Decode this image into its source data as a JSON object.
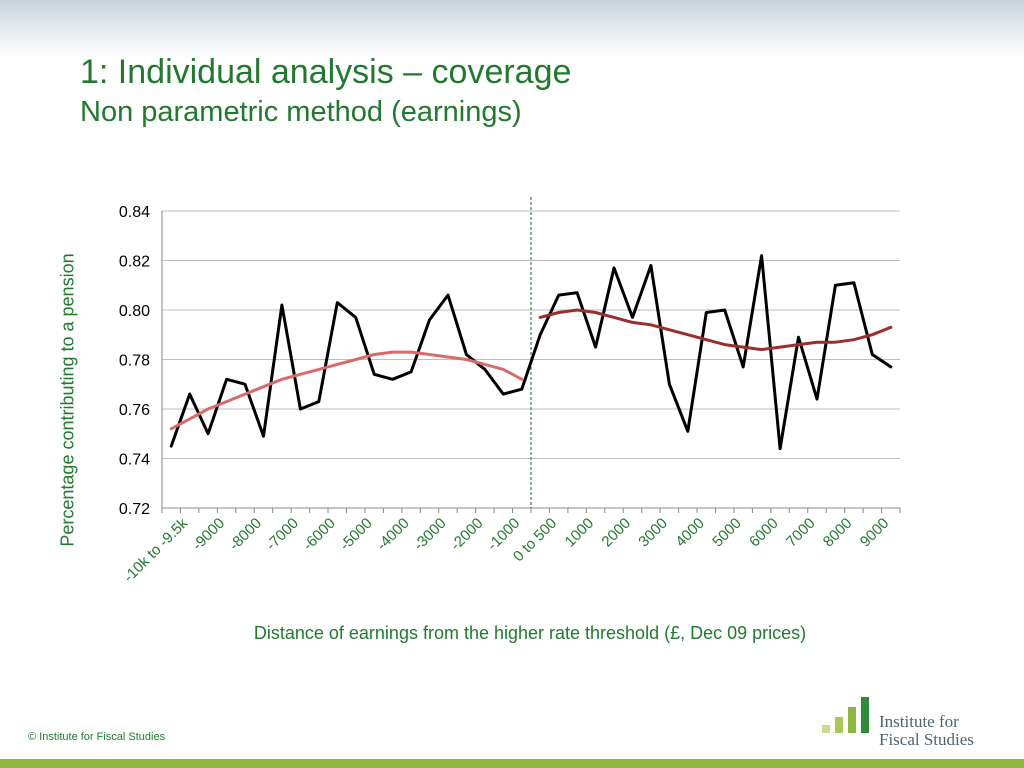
{
  "slide": {
    "title": "1: Individual analysis – coverage",
    "subtitle": "Non parametric method (earnings)",
    "footer": "© Institute for Fiscal Studies",
    "logo_line1": "Institute for",
    "logo_line2": "Fiscal Studies",
    "brand_color": "#1f7a2e",
    "accent_color": "#8cb83f"
  },
  "chart_data": {
    "type": "line",
    "title": "",
    "ylabel": "Percentage contributing to a pension",
    "xlabel": "Distance of earnings from the higher rate threshold (£, Dec 09 prices)",
    "ylim": [
      0.72,
      0.84
    ],
    "yticks": [
      "0.72",
      "0.74",
      "0.76",
      "0.78",
      "0.80",
      "0.82",
      "0.84"
    ],
    "xtick_labels": [
      "-10k to -9.5k",
      "-9000",
      "-8000",
      "-7000",
      "-6000",
      "-5000",
      "-4000",
      "-3000",
      "-2000",
      "-1000",
      "0 to 500",
      "1000",
      "2000",
      "3000",
      "4000",
      "5000",
      "6000",
      "7000",
      "8000",
      "9000"
    ],
    "grid": true,
    "threshold_marker": "dashed vertical line between -500 and 0 to 500",
    "series": [
      {
        "role": "actual",
        "color": "#000000",
        "values": [
          0.745,
          0.766,
          0.75,
          0.772,
          0.77,
          0.749,
          0.802,
          0.76,
          0.763,
          0.803,
          0.797,
          0.774,
          0.772,
          0.775,
          0.796,
          0.806,
          0.782,
          0.776,
          0.766,
          0.768,
          0.79,
          0.806,
          0.807,
          0.785,
          0.817,
          0.797,
          0.818,
          0.77,
          0.751,
          0.799,
          0.8,
          0.777,
          0.822,
          0.744,
          0.789,
          0.764,
          0.81,
          0.811,
          0.782,
          0.777
        ]
      },
      {
        "role": "fitted-below",
        "color": "#d96a6a",
        "start_index": 0,
        "values": [
          0.752,
          0.756,
          0.76,
          0.763,
          0.766,
          0.769,
          0.772,
          0.774,
          0.776,
          0.778,
          0.78,
          0.782,
          0.783,
          0.783,
          0.782,
          0.781,
          0.78,
          0.778,
          0.776,
          0.772
        ]
      },
      {
        "role": "fitted-above",
        "color": "#9b2d2d",
        "start_index": 20,
        "values": [
          0.797,
          0.799,
          0.8,
          0.799,
          0.797,
          0.795,
          0.794,
          0.792,
          0.79,
          0.788,
          0.786,
          0.785,
          0.784,
          0.785,
          0.786,
          0.787,
          0.787,
          0.788,
          0.79,
          0.793
        ]
      }
    ]
  }
}
